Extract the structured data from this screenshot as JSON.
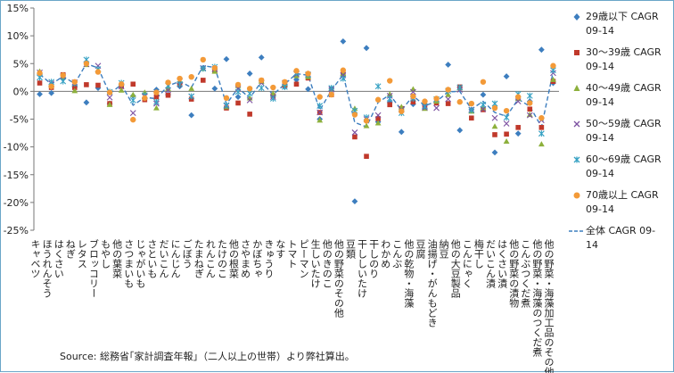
{
  "chart_data": {
    "type": "scatter",
    "ylabel": "",
    "xlabel": "",
    "ylim": [
      -25,
      15
    ],
    "yticks": [
      15,
      10,
      5,
      0,
      -5,
      -10,
      -15,
      -20,
      -25
    ],
    "ytick_format": "%",
    "grid": false,
    "legend_position": "right",
    "categories": [
      "キャベツ",
      "ほうれんそう",
      "はくさい",
      "ねぎ",
      "レタス",
      "ブロッコリー",
      "もやし",
      "他の葉菜",
      "さつまいも",
      "じゃがいも",
      "さといも",
      "だいこん",
      "にんじん",
      "ごぼう",
      "たまねぎ",
      "れんこん",
      "たけのこ",
      "他の根菜",
      "さやまめ",
      "かぼちゃ",
      "きゅうり",
      "なす",
      "トマト",
      "ピーマン",
      "生しいたけ",
      "他のきのこ",
      "他の野菜のその他",
      "豆類",
      "干ししいたけ",
      "干しのり",
      "わかめ",
      "こんぶ",
      "他の乾物・海藻",
      "豆腐",
      "油揚げ・がんもどき",
      "納豆",
      "他の大豆製品",
      "こんにゃく",
      "梅干し",
      "だいこん漬",
      "はくさい漬",
      "他の野菜の漬物",
      "こんぶつくだ煮",
      "他の野菜・海藻のつくだ煮",
      "他の野菜・海藻加工品のその他"
    ],
    "series": [
      {
        "name": "29歳以下 CAGR 09-14",
        "marker": "diamond",
        "color": "#3d7ebf",
        "values": [
          -0.5,
          -0.3,
          2.4,
          0.8,
          -2.0,
          0.6,
          -2.2,
          1.2,
          -0.8,
          -1.3,
          0.3,
          -0.6,
          0.9,
          -4.3,
          4.2,
          0.5,
          5.8,
          -1.0,
          3.2,
          6.1,
          -0.6,
          0.8,
          2.1,
          0.4,
          -5.0,
          0.5,
          9.0,
          -19.8,
          7.8,
          -5.5,
          -2.0,
          -7.3,
          -2.3,
          -2.3,
          -2.0,
          4.8,
          -7.0,
          -3.3,
          -0.6,
          -11.0,
          2.7,
          -7.6,
          -1.8,
          7.5,
          1.5
        ]
      },
      {
        "name": "30～39歳 CAGR 09-14",
        "marker": "square",
        "color": "#c0392b",
        "values": [
          1.5,
          0.7,
          3.0,
          0.7,
          1.2,
          1.1,
          -2.2,
          0.9,
          1.3,
          -1.5,
          -1.0,
          -0.7,
          1.3,
          -1.4,
          2.0,
          3.7,
          -3.0,
          -2.1,
          -4.1,
          1.9,
          -0.8,
          1.1,
          1.3,
          2.4,
          -3.8,
          -0.6,
          3.1,
          -8.2,
          -11.7,
          -4.9,
          -2.4,
          -3.1,
          -1.9,
          -2.7,
          -2.1,
          -2.2,
          0.8,
          -4.8,
          -3.3,
          -7.8,
          -7.7,
          -6.5,
          -3.2,
          -6.5,
          1.8
        ]
      },
      {
        "name": "40～49歳 CAGR 09-14",
        "marker": "triangle",
        "color": "#8db03c",
        "values": [
          3.6,
          1.1,
          2.6,
          0.1,
          4.8,
          3.9,
          -2.4,
          0.2,
          -0.6,
          -0.2,
          -3.0,
          0.5,
          1.8,
          0.5,
          4.1,
          3.6,
          -2.8,
          1.0,
          -1.2,
          1.8,
          -0.4,
          1.3,
          2.8,
          2.6,
          -5.2,
          0.5,
          3.2,
          -3.1,
          -6.2,
          -5.7,
          -0.5,
          -2.8,
          0.4,
          -3.1,
          -1.8,
          -0.6,
          0.6,
          -3.6,
          -3.0,
          -6.3,
          -9.0,
          -1.3,
          -4.2,
          -9.5,
          2.1
        ]
      },
      {
        "name": "50～59歳 CAGR 09-14",
        "marker": "x",
        "color": "#7b4fa0",
        "values": [
          3.4,
          1.4,
          2.7,
          1.6,
          4.9,
          4.6,
          -1.1,
          0.9,
          -3.9,
          -0.9,
          -2.2,
          0.2,
          1.8,
          -0.9,
          4.2,
          4.0,
          -2.6,
          0.5,
          -1.6,
          1.5,
          -1.0,
          1.5,
          3.1,
          3.0,
          -3.8,
          0.4,
          2.9,
          -7.4,
          -5.0,
          -4.3,
          -0.8,
          -3.3,
          -0.1,
          -2.9,
          -3.0,
          -1.4,
          0.3,
          -3.3,
          -3.2,
          -4.8,
          -5.8,
          -1.8,
          -4.3,
          -5.2,
          3.3
        ]
      },
      {
        "name": "60～69歳 CAGR 09-14",
        "marker": "asterisk",
        "color": "#35a1c3",
        "values": [
          2.5,
          1.7,
          1.8,
          1.4,
          5.7,
          4.0,
          -0.1,
          1.5,
          -1.6,
          -0.7,
          -1.9,
          1.0,
          1.3,
          -0.9,
          4.1,
          4.4,
          -2.5,
          -0.1,
          -0.4,
          0.6,
          -1.3,
          0.8,
          3.3,
          3.0,
          -2.6,
          0.6,
          2.3,
          -3.5,
          -4.7,
          0.9,
          -1.3,
          -3.9,
          -1.3,
          -2.7,
          -1.4,
          0.1,
          0.7,
          -3.4,
          -2.4,
          -2.2,
          -4.7,
          -0.5,
          -0.8,
          -7.6,
          3.8
        ]
      },
      {
        "name": "70歳以上 CAGR 09-14",
        "marker": "circle",
        "color": "#f39a38",
        "values": [
          3.3,
          0.9,
          2.9,
          1.7,
          5.0,
          3.5,
          -0.2,
          1.3,
          -5.1,
          -1.2,
          -0.2,
          1.6,
          2.3,
          2.6,
          5.7,
          4.2,
          -1.2,
          1.2,
          0.5,
          2.0,
          0.7,
          1.7,
          3.7,
          3.2,
          -1.0,
          -0.6,
          3.8,
          -4.2,
          -5.3,
          -1.5,
          1.9,
          -3.6,
          -0.9,
          -1.8,
          -1.3,
          0.3,
          -1.9,
          -2.2,
          1.7,
          -3.0,
          -3.5,
          -1.0,
          -2.1,
          -4.8,
          4.6
        ]
      },
      {
        "name": "全体 CAGR 09-14",
        "marker": "dashed-line",
        "color": "#3d7ebf",
        "values": [
          3.1,
          1.3,
          2.7,
          1.4,
          5.0,
          4.2,
          -0.4,
          1.2,
          -2.5,
          -1.1,
          -1.3,
          1.0,
          1.8,
          0.7,
          4.6,
          4.3,
          -2.3,
          0.6,
          -1.2,
          1.7,
          -0.6,
          1.3,
          3.2,
          2.9,
          -3.4,
          0.2,
          3.0,
          -5.6,
          -6.4,
          -2.0,
          -0.6,
          -3.4,
          -0.8,
          -2.6,
          -1.8,
          -0.1,
          0.0,
          -3.2,
          -1.8,
          -3.8,
          -4.5,
          -1.4,
          -2.7,
          -6.4,
          3.6
        ]
      }
    ]
  },
  "legend": [
    {
      "line1": "29歳以下 CAGR",
      "line2": "09-14"
    },
    {
      "line1": "30～39歳 CAGR",
      "line2": "09-14"
    },
    {
      "line1": "40～49歳 CAGR",
      "line2": "09-14"
    },
    {
      "line1": "50～59歳 CAGR",
      "line2": "09-14"
    },
    {
      "line1": "60～69歳 CAGR",
      "line2": "09-14"
    },
    {
      "line1": "70歳以上 CAGR",
      "line2": "09-14"
    },
    {
      "line1": "全体 CAGR 09-",
      "line2": "14"
    }
  ],
  "source_note": "Source: 総務省｢家計調査年報｣（二人以上の世帯）より弊社算出。"
}
